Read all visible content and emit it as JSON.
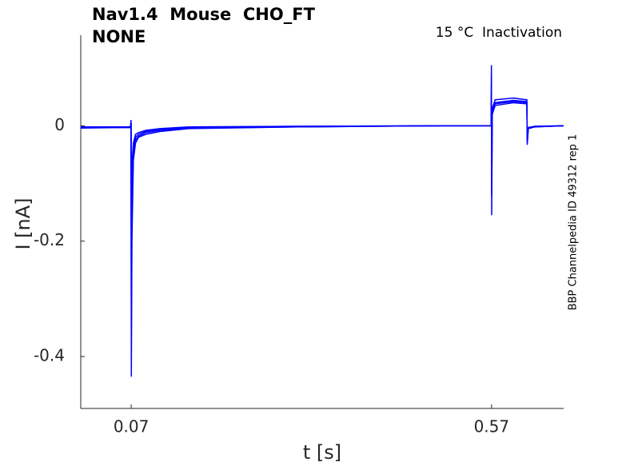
{
  "chart_data": {
    "type": "line",
    "title": "Nav1.4  Mouse  CHO_FT",
    "subtitle": "NONE",
    "annotation": "15 °C  Inactivation",
    "side_note": "BBP Channelpedia ID 49312 rep 1",
    "x_label": "t [s]",
    "y_label": "I [nA]",
    "xlim": [
      0,
      0.67
    ],
    "ylim": [
      -0.49,
      0.157
    ],
    "xticks": [
      0.07,
      0.57
    ],
    "yticks": [
      -0.4,
      -0.2,
      0
    ],
    "grid": false,
    "x": [
      0,
      0.069,
      0.0698,
      0.0702,
      0.071,
      0.073,
      0.076,
      0.08,
      0.09,
      0.11,
      0.15,
      0.3,
      0.5,
      0.5695,
      0.5698,
      0.5702,
      0.571,
      0.575,
      0.6,
      0.619,
      0.6195,
      0.621,
      0.63,
      0.67
    ],
    "series": [
      {
        "color": "#0000ff",
        "values": [
          -0.003,
          -0.002,
          0.01,
          -0.435,
          -0.2,
          -0.06,
          -0.03,
          -0.02,
          -0.015,
          -0.01,
          -0.005,
          -0.002,
          0.0,
          0.0,
          0.105,
          -0.155,
          0.03,
          0.045,
          0.048,
          0.045,
          -0.033,
          -0.005,
          -0.002,
          0.0
        ]
      },
      {
        "color": "#0000ff",
        "values": [
          -0.003,
          -0.003,
          0.005,
          -0.38,
          -0.15,
          -0.05,
          -0.025,
          -0.018,
          -0.012,
          -0.008,
          -0.004,
          -0.002,
          0,
          0,
          0.09,
          -0.12,
          0.02,
          0.04,
          0.044,
          0.042,
          -0.028,
          -0.004,
          -0.002,
          0
        ]
      },
      {
        "color": "#0000ff",
        "values": [
          -0.004,
          -0.003,
          0.004,
          -0.3,
          -0.1,
          -0.04,
          -0.02,
          -0.015,
          -0.01,
          -0.006,
          -0.003,
          -0.001,
          0,
          0,
          0.07,
          -0.06,
          0.025,
          0.038,
          0.042,
          0.04,
          -0.025,
          -0.004,
          -0.001,
          0
        ]
      },
      {
        "color": "#0000ff",
        "values": [
          -0.002,
          -0.002,
          0.003,
          -0.2,
          -0.07,
          -0.03,
          -0.015,
          -0.012,
          -0.008,
          -0.005,
          -0.002,
          -0.001,
          0,
          0,
          0.06,
          -0.03,
          0.02,
          0.035,
          0.04,
          0.038,
          -0.02,
          -0.003,
          -0.001,
          0
        ]
      }
    ]
  }
}
